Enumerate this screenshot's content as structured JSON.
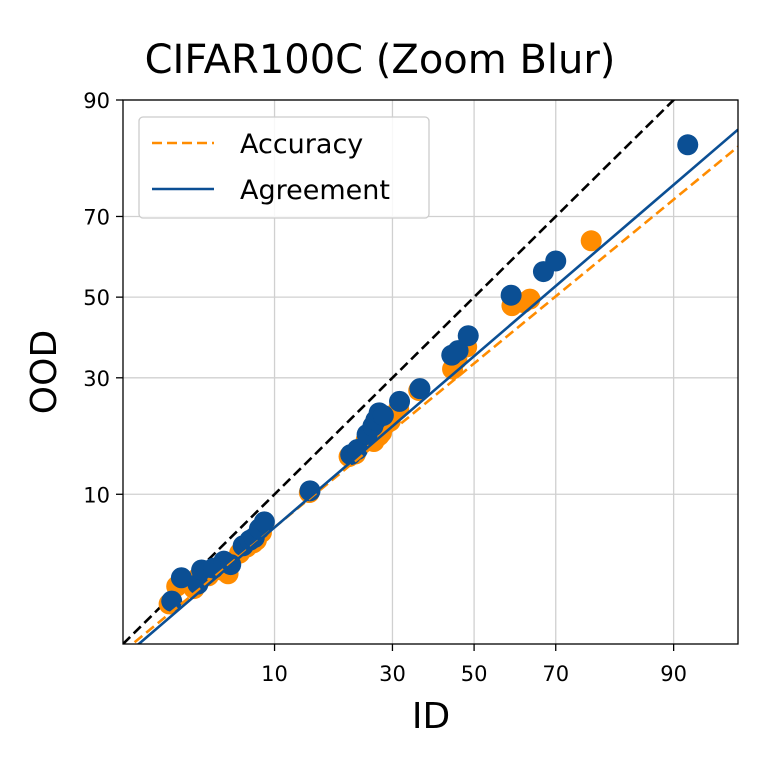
{
  "chart_data": {
    "type": "scatter",
    "title": "CIFAR100C (Zoom Blur)",
    "xlabel": "ID",
    "ylabel": "OOD",
    "scale": "probit",
    "xlim": [
      1.2,
      95.5
    ],
    "ylim": [
      1.2,
      90
    ],
    "x_ticks": [
      10,
      30,
      50,
      70,
      90
    ],
    "y_ticks": [
      10,
      30,
      50,
      70,
      90
    ],
    "grid": true,
    "legend_position": "top-left",
    "colors": {
      "accuracy": "#ff8c00",
      "agreement": "#0b4f94",
      "diagonal": "#000000"
    },
    "series": [
      {
        "name": "Accuracy",
        "style": "dashed-line-with-points",
        "points": [
          [
            2.5,
            2.3
          ],
          [
            2.8,
            3.0
          ],
          [
            3.6,
            2.9
          ],
          [
            3.8,
            3.4
          ],
          [
            4.4,
            3.5
          ],
          [
            5.2,
            3.8
          ],
          [
            5.7,
            3.6
          ],
          [
            6.6,
            4.8
          ],
          [
            7.2,
            5.2
          ],
          [
            7.8,
            5.5
          ],
          [
            8.1,
            5.7
          ],
          [
            8.6,
            6.3
          ],
          [
            14.5,
            10.2
          ],
          [
            21.1,
            15.0
          ],
          [
            22.3,
            15.4
          ],
          [
            24.4,
            17.6
          ],
          [
            25.3,
            18.1
          ],
          [
            26.0,
            17.4
          ],
          [
            27.1,
            18.4
          ],
          [
            27.6,
            18.9
          ],
          [
            29.5,
            21.0
          ],
          [
            31.4,
            23.4
          ],
          [
            36.1,
            27.2
          ],
          [
            44.5,
            32.0
          ],
          [
            45.6,
            34.3
          ],
          [
            48.1,
            37.3
          ],
          [
            59.6,
            47.8
          ],
          [
            62.4,
            48.6
          ],
          [
            64.0,
            49.5
          ],
          [
            77.4,
            64.3
          ]
        ]
      },
      {
        "name": "Agreement",
        "style": "solid-line-with-points",
        "points": [
          [
            2.6,
            2.4
          ],
          [
            3.0,
            3.4
          ],
          [
            3.8,
            3.1
          ],
          [
            4.0,
            3.8
          ],
          [
            4.7,
            3.9
          ],
          [
            5.4,
            4.3
          ],
          [
            5.9,
            4.1
          ],
          [
            6.9,
            5.3
          ],
          [
            7.5,
            5.7
          ],
          [
            7.9,
            5.9
          ],
          [
            8.4,
            6.6
          ],
          [
            8.9,
            7.2
          ],
          [
            14.6,
            10.4
          ],
          [
            21.4,
            15.3
          ],
          [
            22.7,
            16.1
          ],
          [
            24.6,
            18.6
          ],
          [
            25.8,
            20.1
          ],
          [
            26.4,
            21.2
          ],
          [
            27.1,
            22.6
          ],
          [
            28.0,
            22.1
          ],
          [
            31.6,
            24.9
          ],
          [
            36.4,
            27.6
          ],
          [
            44.3,
            35.3
          ],
          [
            45.9,
            36.4
          ],
          [
            48.5,
            40.1
          ],
          [
            59.4,
            50.5
          ],
          [
            67.2,
            56.6
          ],
          [
            70.0,
            59.3
          ],
          [
            91.5,
            83.9
          ]
        ]
      }
    ],
    "fit_lines": [
      {
        "name": "Accuracy",
        "endpoints": [
          [
            1.2,
            1.05
          ],
          [
            95.5,
            83.6
          ]
        ]
      },
      {
        "name": "Agreement",
        "endpoints": [
          [
            1.2,
            0.95
          ],
          [
            95.5,
            86.2
          ]
        ]
      }
    ],
    "diagonal": {
      "endpoints": [
        [
          1.2,
          1.2
        ],
        [
          95.5,
          95.5
        ]
      ]
    }
  }
}
